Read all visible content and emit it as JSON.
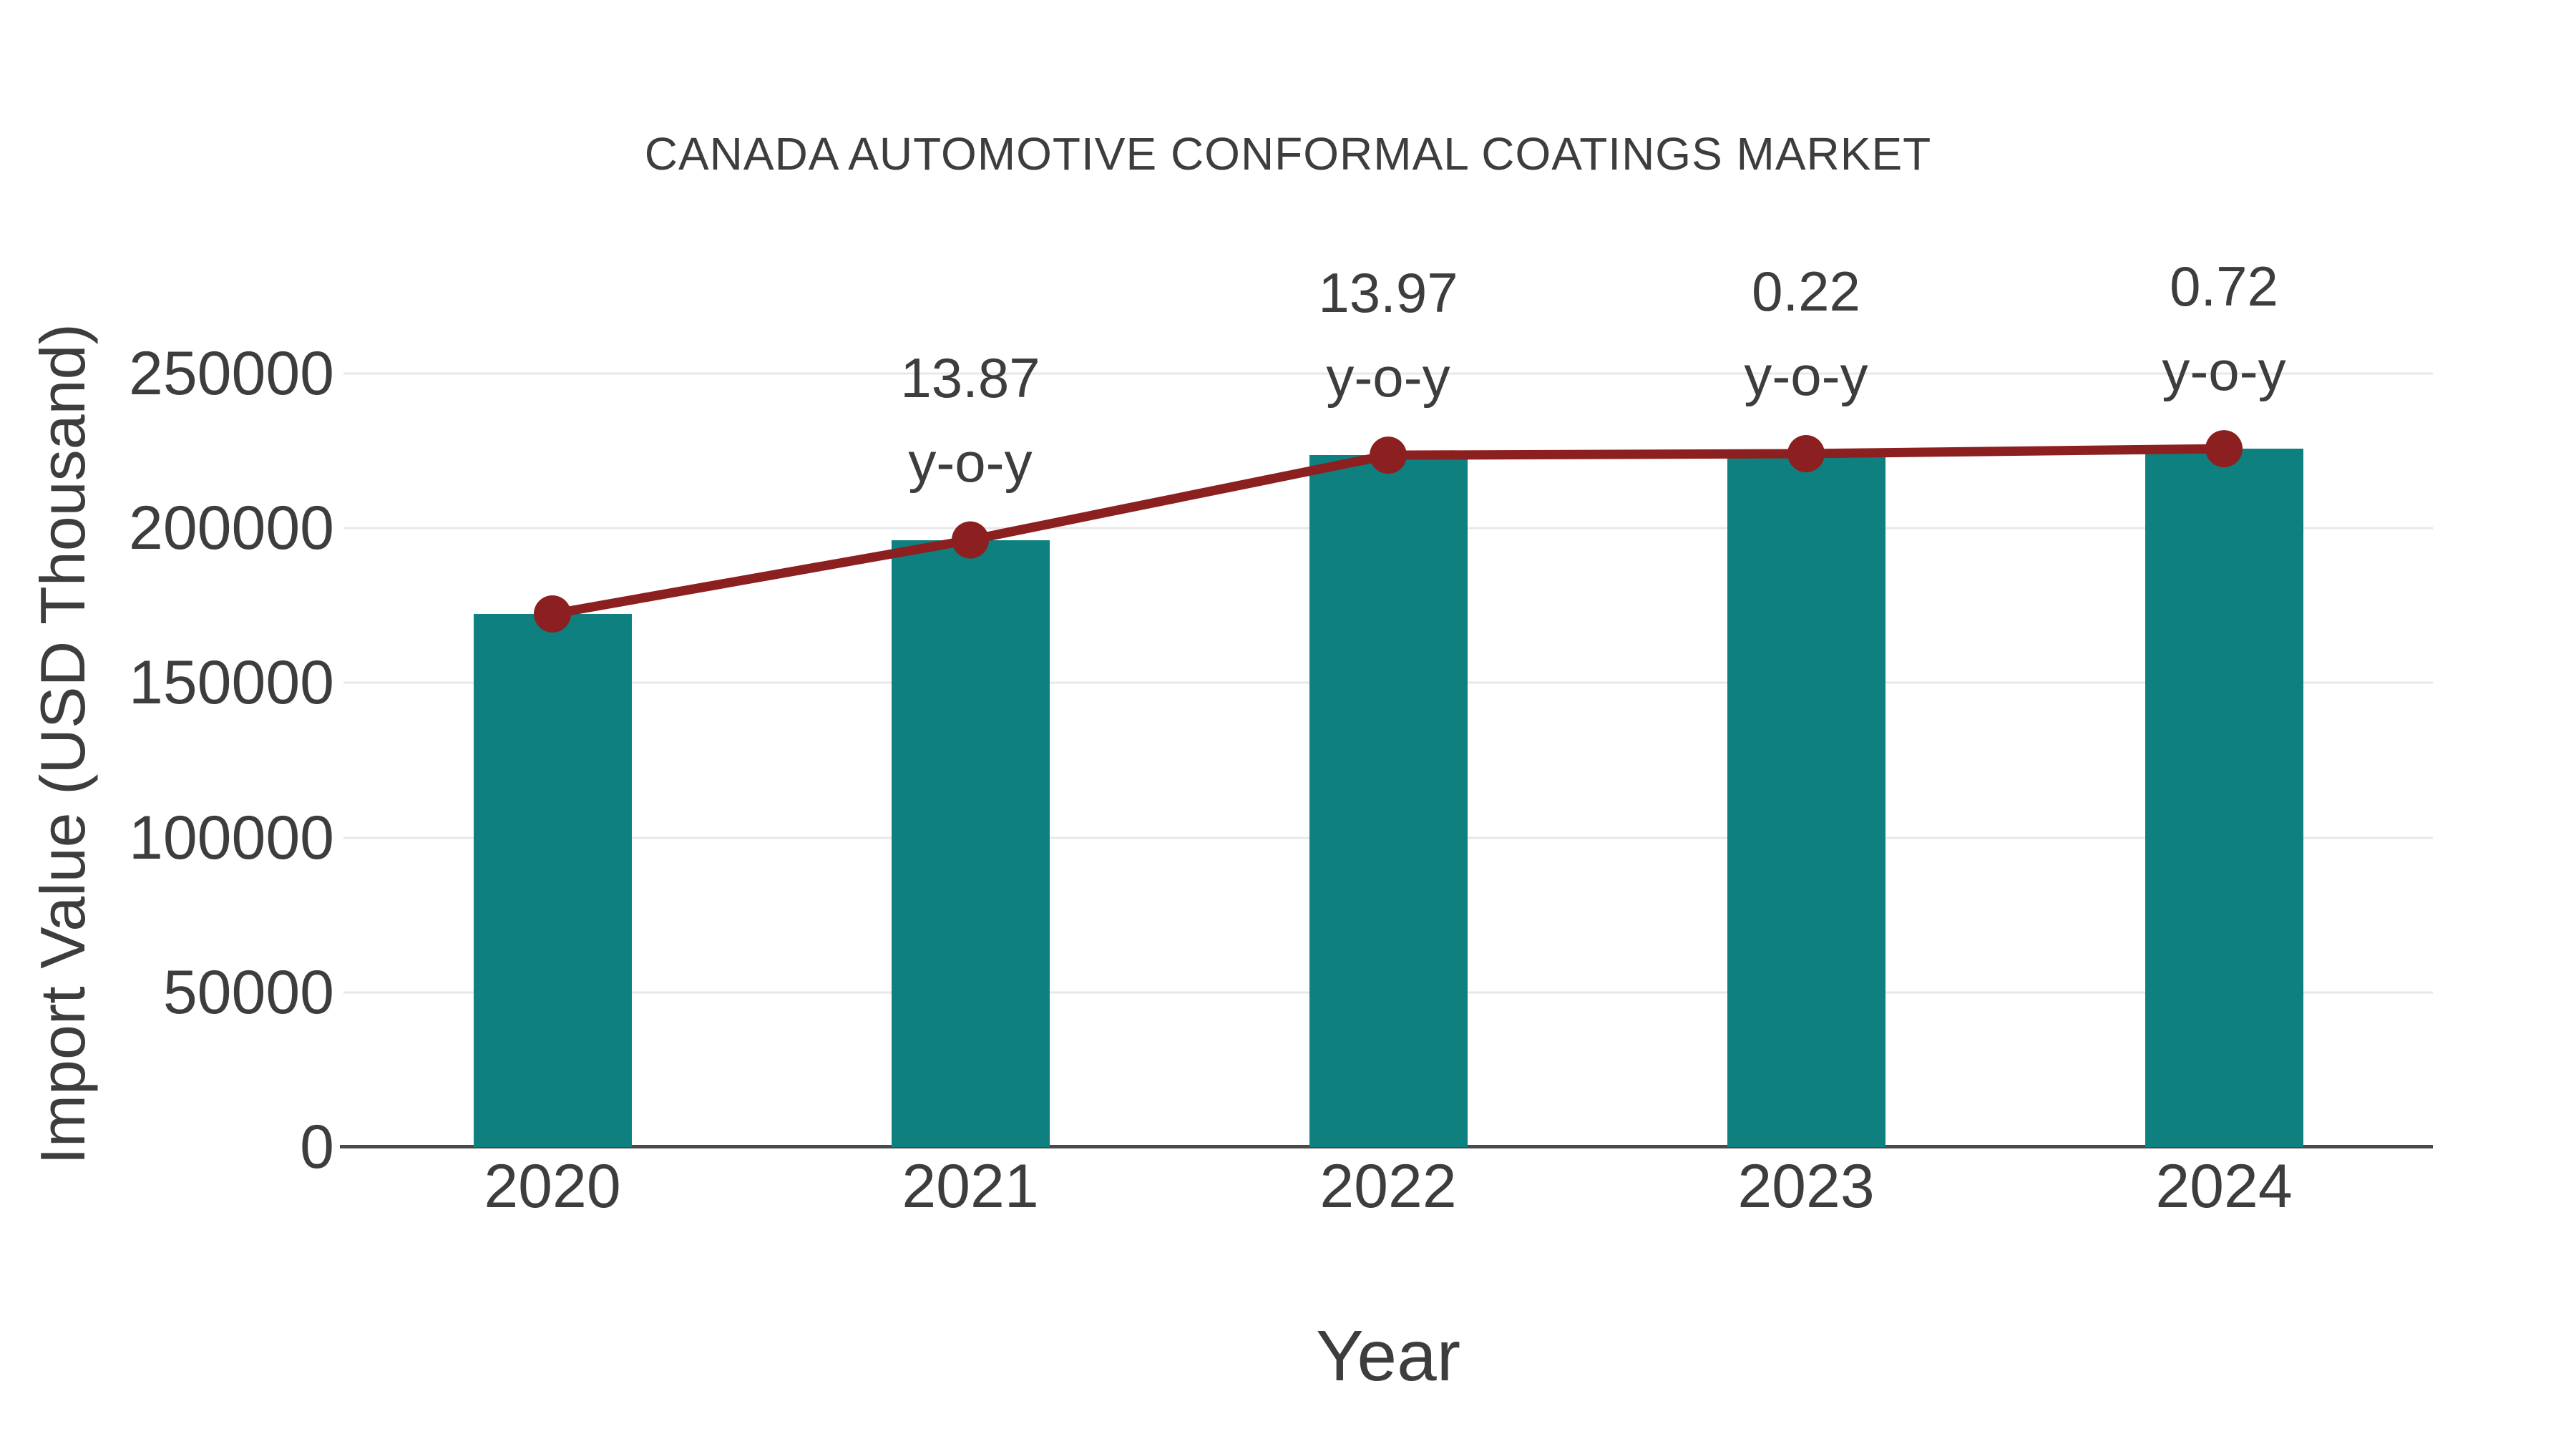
{
  "chart_data": {
    "type": "bar",
    "title": "CANADA AUTOMOTIVE CONFORMAL COATINGS MARKET",
    "categories": [
      "2020",
      "2021",
      "2022",
      "2023",
      "2024"
    ],
    "series": [
      {
        "name": "Import Value",
        "type": "bar",
        "color": "#0e8080",
        "values": [
          172300,
          196200,
          223600,
          224100,
          225700
        ]
      },
      {
        "name": "y-o-y growth (%)",
        "type": "line",
        "color": "#8c2020",
        "values": [
          null,
          13.87,
          13.97,
          0.22,
          0.72
        ],
        "plotted_at": "bar-tops",
        "marker": "circle"
      }
    ],
    "point_label_suffix": "y-o-y",
    "xlabel": "Year",
    "ylabel": "Import Value (USD Thousand)",
    "yticks": [
      0,
      50000,
      100000,
      150000,
      200000,
      250000
    ],
    "ylim": [
      0,
      250000
    ],
    "grid": true,
    "legend": "none",
    "colors": {
      "grid": "#e8e8e8",
      "axis": "#4a4a4a",
      "text": "#3d3d3d"
    }
  }
}
